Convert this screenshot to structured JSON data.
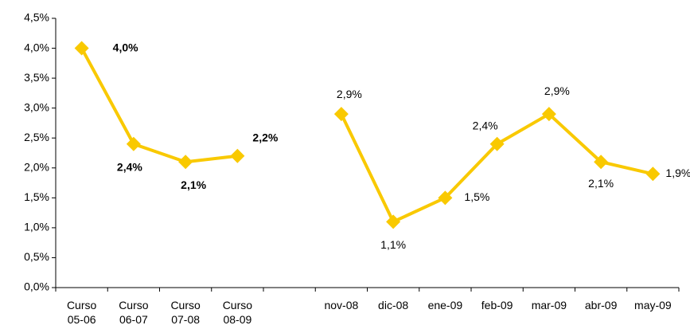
{
  "chart_data": {
    "type": "line",
    "categories": [
      "Curso 05-06",
      "Curso 06-07",
      "Curso 07-08",
      "Curso 08-09",
      null,
      "nov-08",
      "dic-08",
      "ene-09",
      "feb-09",
      "mar-09",
      "abr-09",
      "may-09"
    ],
    "series": [
      {
        "color": "#f9c900",
        "values": [
          4.0,
          2.4,
          2.1,
          2.2,
          null,
          2.9,
          1.1,
          1.5,
          2.4,
          2.9,
          2.1,
          1.9
        ],
        "value_labels": [
          "4,0%",
          "2,4%",
          "2,1%",
          "2,2%",
          null,
          "2,9%",
          "1,1%",
          "1,5%",
          "2,4%",
          "2,9%",
          "2,1%",
          "1,9%"
        ]
      }
    ],
    "ylim": [
      0,
      4.5
    ],
    "yticks": [
      {
        "value": 0,
        "label": "0,0%"
      },
      {
        "value": 0.5,
        "label": "0,5%"
      },
      {
        "value": 1,
        "label": "1,0%"
      },
      {
        "value": 1.5,
        "label": "1,5%"
      },
      {
        "value": 2,
        "label": "2,0%"
      },
      {
        "value": 2.5,
        "label": "2,5%"
      },
      {
        "value": 3,
        "label": "3,0%"
      },
      {
        "value": 3.5,
        "label": "3,5%"
      },
      {
        "value": 4,
        "label": "4,0%"
      },
      {
        "value": 4.5,
        "label": "4,5%"
      }
    ],
    "grid": false
  }
}
